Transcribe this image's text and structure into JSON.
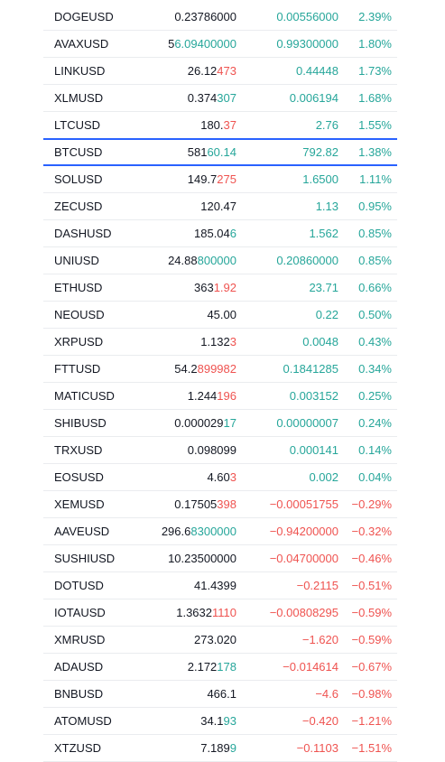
{
  "colors": {
    "up": "#26a69a",
    "down": "#ef5350",
    "neutral": "#131722",
    "highlight": "#2962ff"
  },
  "rows": [
    {
      "symbol": "DOGEUSD",
      "price_base": "0.23786000",
      "price_diff": "",
      "price_dir": "neutral",
      "change": "0.00556000",
      "pct": "2.39%",
      "dir": "up"
    },
    {
      "symbol": "AVAXUSD",
      "price_base": "5",
      "price_diff": "6.09400000",
      "price_dir": "up",
      "change": "0.99300000",
      "pct": "1.80%",
      "dir": "up"
    },
    {
      "symbol": "LINKUSD",
      "price_base": "26.12",
      "price_diff": "473",
      "price_dir": "down",
      "change": "0.44448",
      "pct": "1.73%",
      "dir": "up"
    },
    {
      "symbol": "XLMUSD",
      "price_base": "0.374",
      "price_diff": "307",
      "price_dir": "up",
      "change": "0.006194",
      "pct": "1.68%",
      "dir": "up"
    },
    {
      "symbol": "LTCUSD",
      "price_base": "180.",
      "price_diff": "37",
      "price_dir": "down",
      "change": "2.76",
      "pct": "1.55%",
      "dir": "up"
    },
    {
      "symbol": "BTCUSD",
      "price_base": "581",
      "price_diff": "60.14",
      "price_dir": "up",
      "change": "792.82",
      "pct": "1.38%",
      "dir": "up",
      "highlight": true
    },
    {
      "symbol": "SOLUSD",
      "price_base": "149.7",
      "price_diff": "275",
      "price_dir": "down",
      "change": "1.6500",
      "pct": "1.11%",
      "dir": "up"
    },
    {
      "symbol": "ZECUSD",
      "price_base": "120.47",
      "price_diff": "",
      "price_dir": "neutral",
      "change": "1.13",
      "pct": "0.95%",
      "dir": "up"
    },
    {
      "symbol": "DASHUSD",
      "price_base": "185.04",
      "price_diff": "6",
      "price_dir": "up",
      "change": "1.562",
      "pct": "0.85%",
      "dir": "up"
    },
    {
      "symbol": "UNIUSD",
      "price_base": "24.88",
      "price_diff": "800000",
      "price_dir": "up",
      "change": "0.20860000",
      "pct": "0.85%",
      "dir": "up"
    },
    {
      "symbol": "ETHUSD",
      "price_base": "363",
      "price_diff": "1.92",
      "price_dir": "down",
      "change": "23.71",
      "pct": "0.66%",
      "dir": "up"
    },
    {
      "symbol": "NEOUSD",
      "price_base": "45.00",
      "price_diff": "",
      "price_dir": "neutral",
      "change": "0.22",
      "pct": "0.50%",
      "dir": "up"
    },
    {
      "symbol": "XRPUSD",
      "price_base": "1.132",
      "price_diff": "3",
      "price_dir": "down",
      "change": "0.0048",
      "pct": "0.43%",
      "dir": "up"
    },
    {
      "symbol": "FTTUSD",
      "price_base": "54.2",
      "price_diff": "899982",
      "price_dir": "down",
      "change": "0.1841285",
      "pct": "0.34%",
      "dir": "up"
    },
    {
      "symbol": "MATICUSD",
      "price_base": "1.244",
      "price_diff": "196",
      "price_dir": "down",
      "change": "0.003152",
      "pct": "0.25%",
      "dir": "up"
    },
    {
      "symbol": "SHIBUSD",
      "price_base": "0.000029",
      "price_diff": "17",
      "price_dir": "up",
      "change": "0.00000007",
      "pct": "0.24%",
      "dir": "up"
    },
    {
      "symbol": "TRXUSD",
      "price_base": "0.098099",
      "price_diff": "",
      "price_dir": "neutral",
      "change": "0.000141",
      "pct": "0.14%",
      "dir": "up"
    },
    {
      "symbol": "EOSUSD",
      "price_base": "4.60",
      "price_diff": "3",
      "price_dir": "down",
      "change": "0.002",
      "pct": "0.04%",
      "dir": "up"
    },
    {
      "symbol": "XEMUSD",
      "price_base": "0.17505",
      "price_diff": "398",
      "price_dir": "down",
      "change": "−0.00051755",
      "pct": "−0.29%",
      "dir": "down"
    },
    {
      "symbol": "AAVEUSD",
      "price_base": "296.6",
      "price_diff": "8300000",
      "price_dir": "up",
      "change": "−0.94200000",
      "pct": "−0.32%",
      "dir": "down"
    },
    {
      "symbol": "SUSHIUSD",
      "price_base": "10.23500000",
      "price_diff": "",
      "price_dir": "neutral",
      "change": "−0.04700000",
      "pct": "−0.46%",
      "dir": "down"
    },
    {
      "symbol": "DOTUSD",
      "price_base": "41.4399",
      "price_diff": "",
      "price_dir": "neutral",
      "change": "−0.2115",
      "pct": "−0.51%",
      "dir": "down"
    },
    {
      "symbol": "IOTAUSD",
      "price_base": "1.3632",
      "price_diff": "1110",
      "price_dir": "down",
      "change": "−0.00808295",
      "pct": "−0.59%",
      "dir": "down"
    },
    {
      "symbol": "XMRUSD",
      "price_base": "273.020",
      "price_diff": "",
      "price_dir": "neutral",
      "change": "−1.620",
      "pct": "−0.59%",
      "dir": "down"
    },
    {
      "symbol": "ADAUSD",
      "price_base": "2.172",
      "price_diff": "178",
      "price_dir": "up",
      "change": "−0.014614",
      "pct": "−0.67%",
      "dir": "down"
    },
    {
      "symbol": "BNBUSD",
      "price_base": "466.1",
      "price_diff": "",
      "price_dir": "neutral",
      "change": "−4.6",
      "pct": "−0.98%",
      "dir": "down"
    },
    {
      "symbol": "ATOMUSD",
      "price_base": "34.1",
      "price_diff": "93",
      "price_dir": "up",
      "change": "−0.420",
      "pct": "−1.21%",
      "dir": "down"
    },
    {
      "symbol": "XTZUSD",
      "price_base": "7.189",
      "price_diff": "9",
      "price_dir": "up",
      "change": "−0.1103",
      "pct": "−1.51%",
      "dir": "down"
    }
  ]
}
